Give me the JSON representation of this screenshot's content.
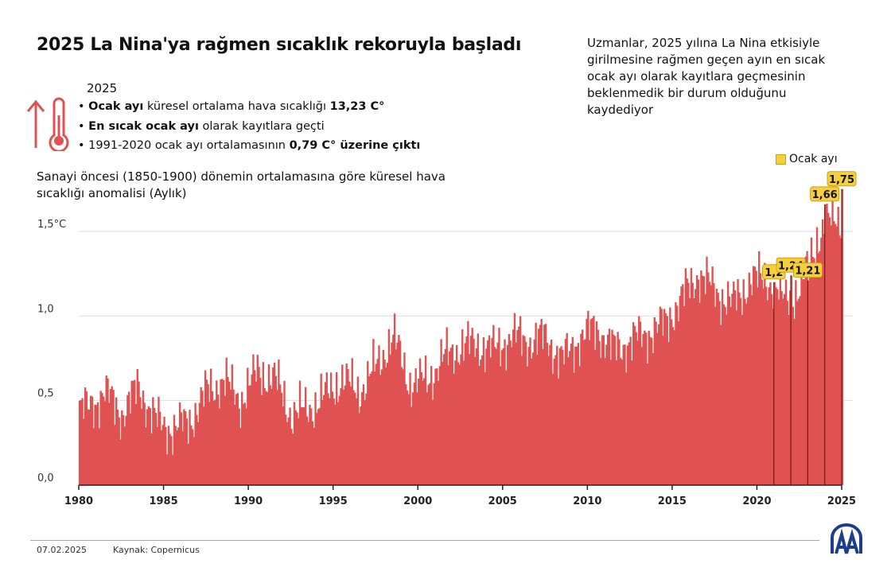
{
  "title": "2025 La Nina'ya rağmen sıcaklık rekoruyla başladı",
  "note": "Uzmanlar, 2025 yılına La Nina etkisiyle girilmesine rağmen geçen ayın en sıcak ocak ayı olarak kayıtlara geçmesinin beklenmedik bir durum olduğunu kaydediyor",
  "highlights": {
    "year": "2025",
    "items": [
      {
        "bold1": "Ocak ayı",
        "text": " küresel ortalama hava sıcaklığı ",
        "bold2": "13,23 C°"
      },
      {
        "bold1": "En sıcak ocak ayı",
        "text": " olarak kayıtlara geçti",
        "bold2": ""
      },
      {
        "bold1": "",
        "text": "1991-2020 ocak ayı ortalamasının ",
        "bold2": "0,79 C° üzerine çıktı"
      }
    ]
  },
  "icons": {
    "arrow": "arrow-up-icon",
    "thermometer": "thermometer-icon",
    "logo": "aa-logo"
  },
  "footer": {
    "date": "07.02.2025",
    "source": "Kaynak: Copernicus"
  },
  "chart_data": {
    "type": "bar",
    "subtitle": "Sanayi öncesi (1850-1900) dönemin ortalamasına göre küresel hava sıcaklığı anomalisi (Aylık)",
    "ylim": [
      0,
      1.8
    ],
    "yticks": [
      {
        "v": 0,
        "label": "0,0"
      },
      {
        "v": 0.5,
        "label": "0,5"
      },
      {
        "v": 1.0,
        "label": "1,0"
      },
      {
        "v": 1.5,
        "label": "1,5°C"
      }
    ],
    "xlim": [
      1980,
      2025
    ],
    "xticks": [
      "1980",
      "1985",
      "1990",
      "1995",
      "2000",
      "2005",
      "2010",
      "2015",
      "2020",
      "2025"
    ],
    "grid": true,
    "bar_color": "#e05252",
    "highlight_color": "#f5cf3c",
    "legend": {
      "label": "Ocak ayı",
      "position": "top-right"
    },
    "annual_approx": {
      "years": [
        1980,
        1981,
        1982,
        1983,
        1984,
        1985,
        1986,
        1987,
        1988,
        1989,
        1990,
        1991,
        1992,
        1993,
        1994,
        1995,
        1996,
        1997,
        1998,
        1999,
        2000,
        2001,
        2002,
        2003,
        2004,
        2005,
        2006,
        2007,
        2008,
        2009,
        2010,
        2011,
        2012,
        2013,
        2014,
        2015,
        2016,
        2017,
        2018,
        2019,
        2020,
        2021,
        2022,
        2023,
        2024
      ],
      "values": [
        0.45,
        0.55,
        0.42,
        0.58,
        0.38,
        0.33,
        0.38,
        0.55,
        0.62,
        0.5,
        0.67,
        0.63,
        0.42,
        0.45,
        0.53,
        0.63,
        0.55,
        0.7,
        0.88,
        0.6,
        0.62,
        0.75,
        0.82,
        0.83,
        0.8,
        0.88,
        0.85,
        0.87,
        0.74,
        0.87,
        0.93,
        0.8,
        0.85,
        0.9,
        0.95,
        1.1,
        1.25,
        1.15,
        1.07,
        1.2,
        1.23,
        1.1,
        1.15,
        1.46,
        1.58
      ]
    },
    "january_labels": [
      {
        "year": 2021,
        "value": 1.2,
        "label": "1,2"
      },
      {
        "year": 2022,
        "value": 1.24,
        "label": "1,24"
      },
      {
        "year": 2023,
        "value": 1.21,
        "label": "1,21"
      },
      {
        "year": 2024,
        "value": 1.66,
        "label": "1,66"
      },
      {
        "year": 2025,
        "value": 1.75,
        "label": "1,75"
      }
    ]
  }
}
